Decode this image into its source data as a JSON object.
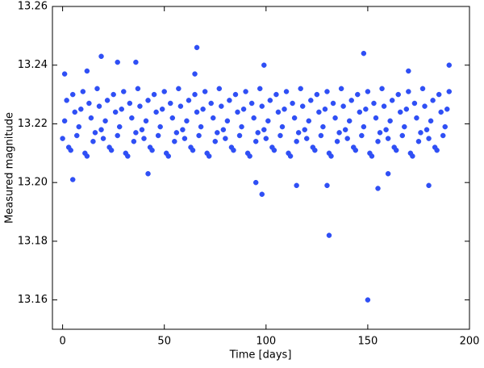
{
  "chart_data": {
    "type": "scatter",
    "x_label": "Time [days]",
    "y_label": "Measured magnitude",
    "xlim": [
      -5,
      200
    ],
    "ylim": [
      13.15,
      13.26
    ],
    "xticks": [
      0,
      50,
      100,
      150,
      200
    ],
    "yticks": [
      13.16,
      13.18,
      {
        "value": 13.2,
        "label": "13.20"
      },
      13.22,
      13.24,
      13.26
    ],
    "series": [
      {
        "color": "#2f4ff5",
        "x": [
          0,
          2,
          4,
          6,
          8,
          10,
          12,
          14,
          16,
          18,
          20,
          22,
          24,
          26,
          28,
          30,
          32,
          34,
          36,
          38,
          40,
          42,
          44,
          46,
          48,
          50,
          52,
          54,
          56,
          58,
          60,
          62,
          64,
          66,
          68,
          70,
          72,
          74,
          76,
          78,
          80,
          82,
          84,
          86,
          88,
          90,
          92,
          94,
          96,
          98,
          100,
          102,
          104,
          106,
          108,
          110,
          112,
          114,
          116,
          118,
          120,
          122,
          124,
          126,
          128,
          130,
          132,
          134,
          136,
          138,
          140,
          142,
          144,
          146,
          148,
          150,
          152,
          154,
          156,
          158,
          160,
          162,
          164,
          166,
          168,
          170,
          172,
          174,
          176,
          178,
          180,
          182,
          184,
          186,
          188,
          190,
          1,
          3,
          5,
          7,
          9,
          11,
          13,
          15,
          17,
          19,
          21,
          23,
          25,
          27,
          29,
          31,
          33,
          35,
          37,
          39,
          41,
          43,
          45,
          47,
          49,
          51,
          53,
          55,
          57,
          59,
          61,
          63,
          65,
          67,
          69,
          71,
          73,
          75,
          77,
          79,
          81,
          83,
          85,
          87,
          89,
          91,
          93,
          95,
          97,
          99,
          101,
          103,
          105,
          107,
          109,
          111,
          113,
          115,
          117,
          119,
          121,
          123,
          125,
          127,
          129,
          131,
          133,
          135,
          137,
          139,
          141,
          143,
          145,
          147,
          149,
          151,
          153,
          155,
          157,
          159,
          161,
          163,
          165,
          167,
          169,
          171,
          173,
          175,
          177,
          179,
          181,
          183,
          185,
          187,
          189,
          19,
          66,
          148,
          131,
          150,
          98,
          27,
          36,
          99,
          190,
          1,
          12,
          5,
          130,
          155,
          180,
          95,
          115,
          42,
          160,
          65,
          170
        ],
        "values": [
          13.215,
          13.228,
          13.211,
          13.224,
          13.219,
          13.231,
          13.209,
          13.222,
          13.217,
          13.226,
          13.215,
          13.228,
          13.211,
          13.224,
          13.219,
          13.231,
          13.209,
          13.222,
          13.217,
          13.226,
          13.215,
          13.228,
          13.211,
          13.224,
          13.219,
          13.231,
          13.209,
          13.222,
          13.217,
          13.226,
          13.215,
          13.228,
          13.211,
          13.224,
          13.219,
          13.231,
          13.209,
          13.222,
          13.217,
          13.226,
          13.215,
          13.228,
          13.211,
          13.224,
          13.219,
          13.231,
          13.209,
          13.222,
          13.217,
          13.226,
          13.215,
          13.228,
          13.211,
          13.224,
          13.219,
          13.231,
          13.209,
          13.222,
          13.217,
          13.226,
          13.215,
          13.228,
          13.211,
          13.224,
          13.219,
          13.231,
          13.209,
          13.222,
          13.217,
          13.226,
          13.215,
          13.228,
          13.211,
          13.224,
          13.219,
          13.231,
          13.209,
          13.222,
          13.217,
          13.226,
          13.215,
          13.228,
          13.211,
          13.224,
          13.219,
          13.231,
          13.209,
          13.222,
          13.217,
          13.226,
          13.215,
          13.228,
          13.211,
          13.224,
          13.219,
          13.231,
          13.221,
          13.212,
          13.23,
          13.216,
          13.225,
          13.21,
          13.227,
          13.214,
          13.232,
          13.218,
          13.221,
          13.212,
          13.23,
          13.216,
          13.225,
          13.21,
          13.227,
          13.214,
          13.232,
          13.218,
          13.221,
          13.212,
          13.23,
          13.216,
          13.225,
          13.21,
          13.227,
          13.214,
          13.232,
          13.218,
          13.221,
          13.212,
          13.23,
          13.216,
          13.225,
          13.21,
          13.227,
          13.214,
          13.232,
          13.218,
          13.221,
          13.212,
          13.23,
          13.216,
          13.225,
          13.21,
          13.227,
          13.214,
          13.232,
          13.218,
          13.221,
          13.212,
          13.23,
          13.216,
          13.225,
          13.21,
          13.227,
          13.214,
          13.232,
          13.218,
          13.221,
          13.212,
          13.23,
          13.216,
          13.225,
          13.21,
          13.227,
          13.214,
          13.232,
          13.218,
          13.221,
          13.212,
          13.23,
          13.216,
          13.225,
          13.21,
          13.227,
          13.214,
          13.232,
          13.218,
          13.221,
          13.212,
          13.23,
          13.216,
          13.225,
          13.21,
          13.227,
          13.214,
          13.232,
          13.218,
          13.221,
          13.212,
          13.23,
          13.216,
          13.225,
          13.243,
          13.246,
          13.244,
          13.182,
          13.16,
          13.196,
          13.241,
          13.241,
          13.24,
          13.24,
          13.237,
          13.238,
          13.201,
          13.199,
          13.198,
          13.199,
          13.2,
          13.199,
          13.203,
          13.203,
          13.237,
          13.238
        ]
      }
    ]
  }
}
